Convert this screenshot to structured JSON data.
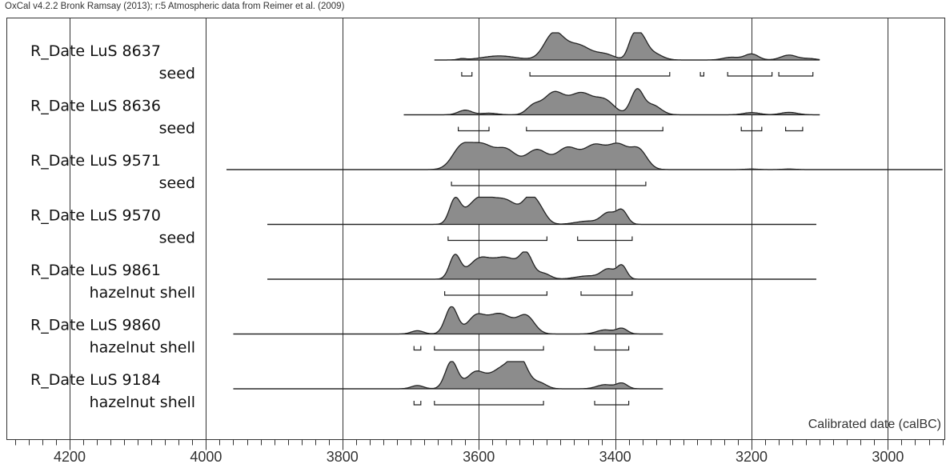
{
  "header": "OxCal v4.2.2 Bronk Ramsay (2013); r:5 Atmospheric data from Reimer et al. (2009)",
  "chart_data": {
    "type": "area",
    "xlabel": "Calibrated date (calBC)",
    "x_reversed": true,
    "xlim": [
      4290,
      2920
    ],
    "x_ticks": [
      4200,
      4000,
      3800,
      3600,
      3400,
      3200,
      3000
    ],
    "grid": "vertical lines at major ticks",
    "colors": {
      "fill": "#8c8c8c",
      "line": "#222222",
      "frame": "#333333"
    },
    "series": [
      {
        "name": "R_Date LuS 8637",
        "sample": "seed",
        "range": [
          3665,
          3100
        ],
        "peaks": [
          [
            3625,
            0.04,
            6
          ],
          [
            3570,
            0.15,
            25
          ],
          [
            3490,
            0.95,
            14
          ],
          [
            3455,
            0.55,
            18
          ],
          [
            3415,
            0.2,
            14
          ],
          [
            3375,
            0.55,
            7
          ],
          [
            3363,
            0.8,
            9
          ],
          [
            3345,
            0.25,
            13
          ],
          [
            3230,
            0.1,
            12
          ],
          [
            3200,
            0.22,
            10
          ],
          [
            3145,
            0.18,
            12
          ],
          [
            3115,
            0.05,
            10
          ]
        ],
        "intervals": [
          [
            3625,
            3610
          ],
          [
            3525,
            3320
          ],
          [
            3275,
            3270
          ],
          [
            3235,
            3170
          ],
          [
            3160,
            3110
          ]
        ]
      },
      {
        "name": "R_Date LuS 8636",
        "sample": "seed",
        "range": [
          3710,
          3100
        ],
        "peaks": [
          [
            3620,
            0.17,
            10
          ],
          [
            3585,
            0.06,
            12
          ],
          [
            3520,
            0.3,
            10
          ],
          [
            3490,
            0.8,
            15
          ],
          [
            3450,
            0.78,
            17
          ],
          [
            3415,
            0.5,
            14
          ],
          [
            3368,
            0.9,
            9
          ],
          [
            3345,
            0.35,
            12
          ],
          [
            3200,
            0.08,
            12
          ],
          [
            3145,
            0.09,
            12
          ]
        ],
        "intervals": [
          [
            3630,
            3585
          ],
          [
            3530,
            3330
          ],
          [
            3215,
            3185
          ],
          [
            3150,
            3125
          ]
        ]
      },
      {
        "name": "R_Date LuS 9571",
        "sample": "seed",
        "range": [
          3970,
          2920
        ],
        "peaks": [
          [
            3625,
            0.8,
            14
          ],
          [
            3595,
            0.85,
            16
          ],
          [
            3560,
            0.7,
            15
          ],
          [
            3515,
            0.72,
            16
          ],
          [
            3470,
            0.78,
            16
          ],
          [
            3430,
            0.85,
            16
          ],
          [
            3395,
            0.86,
            15
          ],
          [
            3365,
            0.68,
            12
          ],
          [
            3200,
            0.02,
            10
          ],
          [
            3145,
            0.02,
            10
          ]
        ],
        "intervals": [
          [
            3640,
            3355
          ]
        ]
      },
      {
        "name": "R_Date LuS 9570",
        "sample": "seed",
        "range": [
          3910,
          3105
        ],
        "peaks": [
          [
            3635,
            0.85,
            8
          ],
          [
            3600,
            0.9,
            18
          ],
          [
            3560,
            0.85,
            20
          ],
          [
            3525,
            0.75,
            10
          ],
          [
            3510,
            0.45,
            10
          ],
          [
            3440,
            0.12,
            18
          ],
          [
            3410,
            0.4,
            10
          ],
          [
            3390,
            0.5,
            8
          ]
        ],
        "intervals": [
          [
            3645,
            3500
          ],
          [
            3455,
            3375
          ]
        ]
      },
      {
        "name": "R_Date LuS 9861",
        "sample": "hazelnut shell",
        "range": [
          3910,
          3105
        ],
        "peaks": [
          [
            3635,
            0.85,
            8
          ],
          [
            3600,
            0.68,
            16
          ],
          [
            3560,
            0.78,
            20
          ],
          [
            3530,
            0.75,
            9
          ],
          [
            3505,
            0.2,
            10
          ],
          [
            3440,
            0.12,
            18
          ],
          [
            3410,
            0.35,
            10
          ],
          [
            3390,
            0.48,
            7
          ]
        ],
        "intervals": [
          [
            3650,
            3500
          ],
          [
            3450,
            3375
          ]
        ]
      },
      {
        "name": "R_Date LuS 9860",
        "sample": "hazelnut shell",
        "range": [
          3960,
          3330
        ],
        "peaks": [
          [
            3690,
            0.12,
            9
          ],
          [
            3640,
            1.0,
            9
          ],
          [
            3605,
            0.55,
            12
          ],
          [
            3570,
            0.75,
            20
          ],
          [
            3530,
            0.6,
            12
          ],
          [
            3415,
            0.15,
            12
          ],
          [
            3390,
            0.2,
            8
          ]
        ],
        "intervals": [
          [
            3695,
            3685
          ],
          [
            3665,
            3505
          ],
          [
            3430,
            3380
          ]
        ]
      },
      {
        "name": "R_Date LuS 9184",
        "sample": "hazelnut shell",
        "range": [
          3960,
          3330
        ],
        "peaks": [
          [
            3690,
            0.12,
            9
          ],
          [
            3640,
            1.0,
            9
          ],
          [
            3605,
            0.58,
            13
          ],
          [
            3565,
            0.75,
            18
          ],
          [
            3540,
            0.95,
            12
          ],
          [
            3510,
            0.2,
            10
          ],
          [
            3415,
            0.15,
            12
          ],
          [
            3390,
            0.2,
            8
          ]
        ],
        "intervals": [
          [
            3695,
            3685
          ],
          [
            3665,
            3505
          ],
          [
            3430,
            3380
          ]
        ]
      }
    ]
  }
}
